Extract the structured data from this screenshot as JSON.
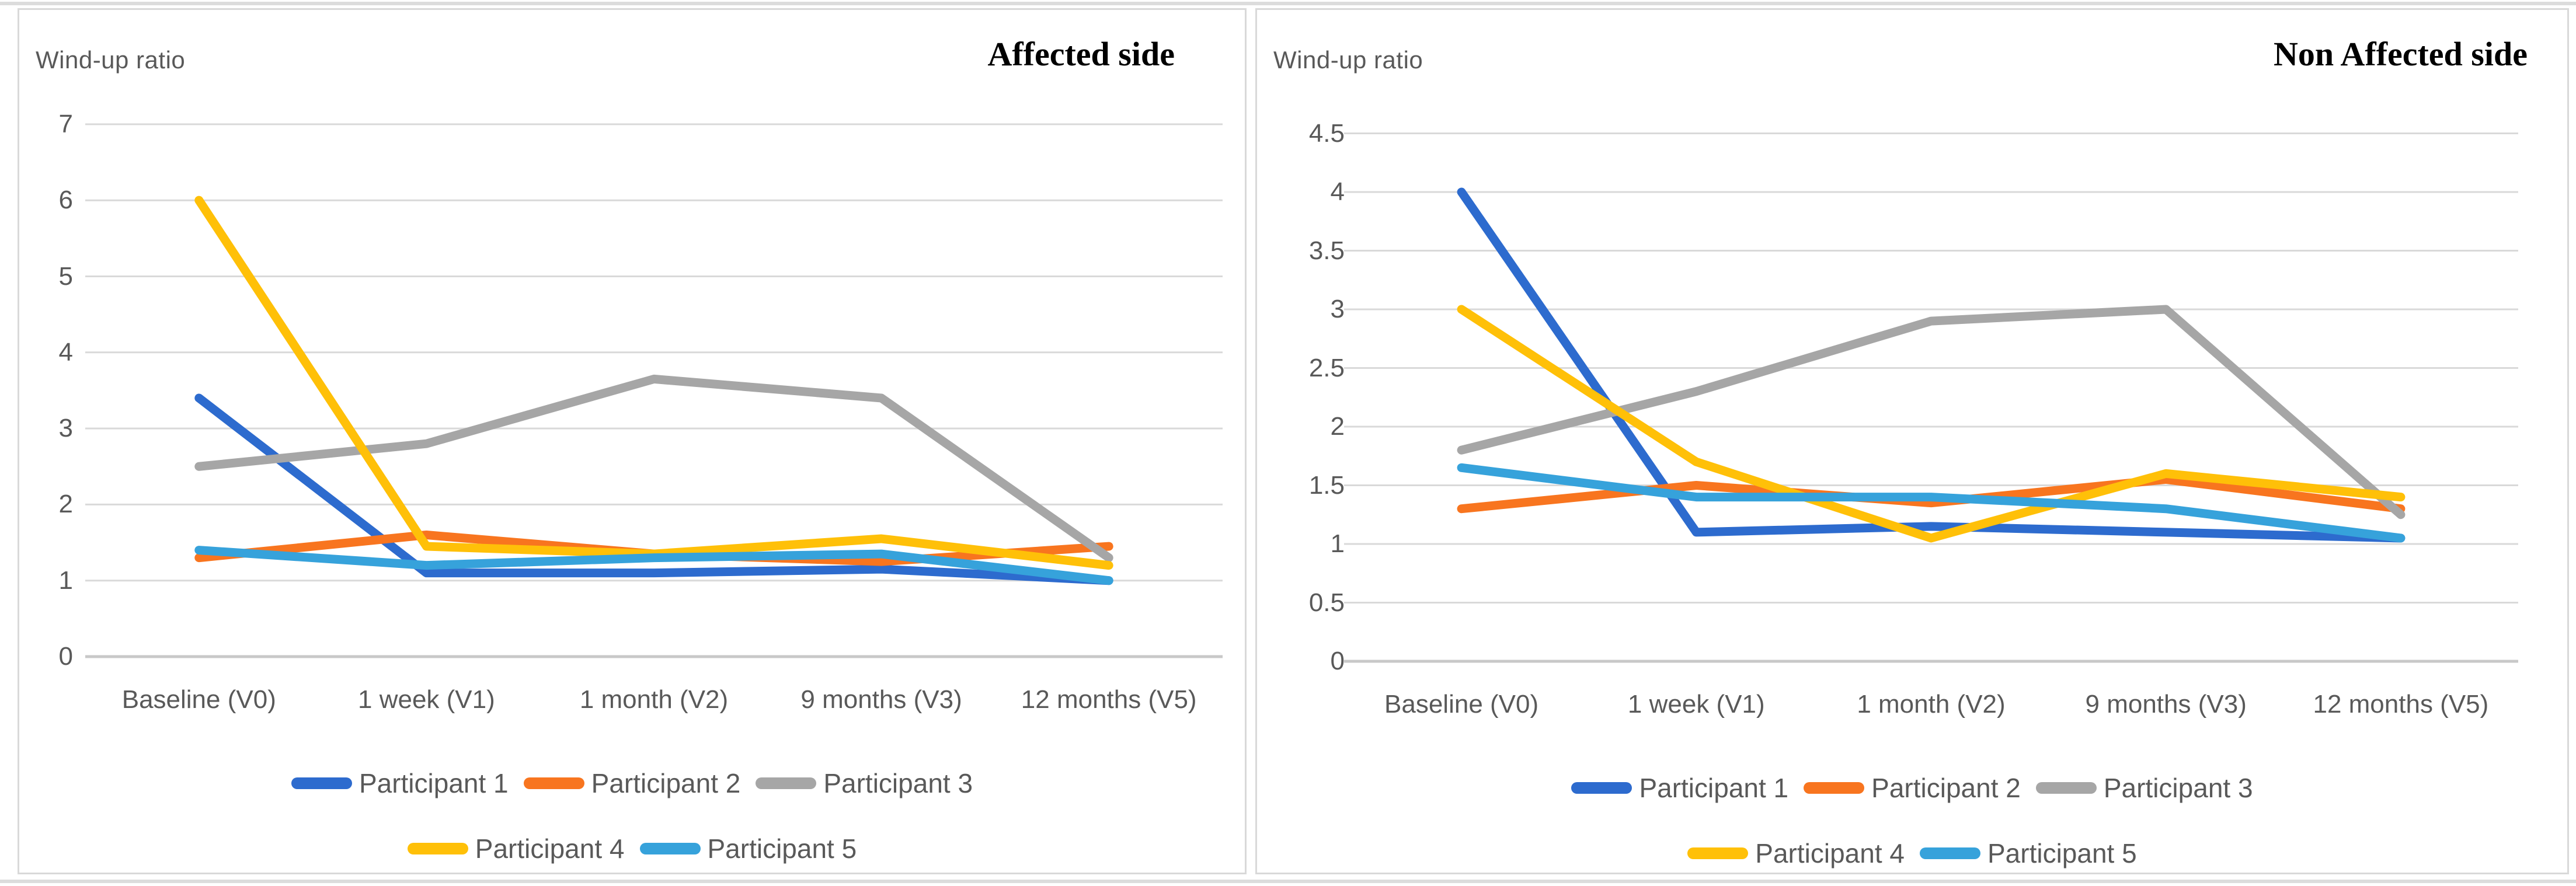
{
  "chart_data": [
    {
      "type": "line",
      "title": "Affected side",
      "ylabel": "Wind-up ratio",
      "categories": [
        "Baseline (V0)",
        "1 week (V1)",
        "1 month (V2)",
        "9 months (V3)",
        "12 months (V5)"
      ],
      "ylim": [
        0,
        7
      ],
      "yticks": [
        0,
        1,
        2,
        3,
        4,
        5,
        6,
        7
      ],
      "grid": true,
      "legend_position": "bottom",
      "legend_rows": [
        [
          0,
          1,
          2
        ],
        [
          3,
          4
        ]
      ],
      "series": [
        {
          "name": "Participant 1",
          "color": "#2D6BCE",
          "values": [
            3.4,
            1.1,
            1.1,
            1.15,
            1.0
          ]
        },
        {
          "name": "Participant 2",
          "color": "#F8751F",
          "values": [
            1.3,
            1.6,
            1.35,
            1.25,
            1.45
          ]
        },
        {
          "name": "Participant 3",
          "color": "#A6A6A6",
          "values": [
            2.5,
            2.8,
            3.65,
            3.4,
            1.3
          ]
        },
        {
          "name": "Participant 4",
          "color": "#FFC008",
          "values": [
            6.0,
            1.45,
            1.35,
            1.55,
            1.2
          ]
        },
        {
          "name": "Participant 5",
          "color": "#36A2DB",
          "values": [
            1.4,
            1.2,
            1.3,
            1.35,
            1.0
          ]
        }
      ]
    },
    {
      "type": "line",
      "title": "Non Affected side",
      "ylabel": "Wind-up ratio",
      "categories": [
        "Baseline (V0)",
        "1 week (V1)",
        "1 month (V2)",
        "9 months (V3)",
        "12 months (V5)"
      ],
      "ylim": [
        0,
        4.5
      ],
      "yticks": [
        0,
        0.5,
        1,
        1.5,
        2,
        2.5,
        3,
        3.5,
        4,
        4.5
      ],
      "grid": true,
      "legend_position": "bottom",
      "legend_rows": [
        [
          0,
          1,
          2
        ],
        [
          3,
          4
        ]
      ],
      "series": [
        {
          "name": "Participant 1",
          "color": "#2D6BCE",
          "values": [
            4.0,
            1.1,
            1.15,
            1.1,
            1.05
          ]
        },
        {
          "name": "Participant 2",
          "color": "#F8751F",
          "values": [
            1.3,
            1.5,
            1.35,
            1.55,
            1.3
          ]
        },
        {
          "name": "Participant 3",
          "color": "#A6A6A6",
          "values": [
            1.8,
            2.3,
            2.9,
            3.0,
            1.25
          ]
        },
        {
          "name": "Participant 4",
          "color": "#FFC008",
          "values": [
            3.0,
            1.7,
            1.05,
            1.6,
            1.4
          ]
        },
        {
          "name": "Participant 5",
          "color": "#36A2DB",
          "values": [
            1.65,
            1.4,
            1.4,
            1.3,
            1.05
          ]
        }
      ]
    }
  ],
  "style": {
    "gridline_color": "#d9d9d9",
    "axis_line_color": "#c8c8c8",
    "text_color": "#595959",
    "line_width": 15
  }
}
